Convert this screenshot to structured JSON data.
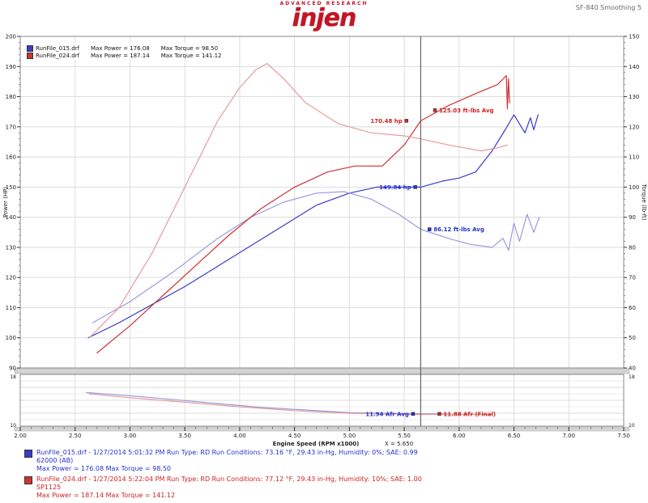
{
  "header": {
    "brand_top": "ADVANCED RESEARCH",
    "brand": "injen",
    "brand_bottom": "TECHNOLOGY",
    "info": "SF-840  Smoothing 5"
  },
  "colors": {
    "run1_power": "#3b3bc8",
    "run1_torque": "#9a9ae0",
    "run2_power": "#cf3333",
    "run2_torque": "#e89a9a",
    "run1_text": "#2233cc",
    "run2_text": "#cc2222",
    "grid": "#dcdcdc",
    "grid_minor": "#ececec",
    "frame": "#888888",
    "cursor": "#666666",
    "splitter": "#d4d4d4"
  },
  "chart_legend": {
    "runs": [
      {
        "file": "RunFile_015.drf",
        "max_power": "Max Power = 176.08",
        "max_torque": "Max Torque = 98.50"
      },
      {
        "file": "RunFile_024.drf",
        "max_power": "Max Power = 187.14",
        "max_torque": "Max Torque = 141.12"
      }
    ]
  },
  "axes": {
    "x_title": "Engine Speed (RPM x1000)",
    "x_readout": "X = 5.650",
    "left_title": "Power (HP)",
    "right_title": "Torque (lb-ft)"
  },
  "chart_data": [
    {
      "type": "line",
      "panel": "main",
      "xlabel": "Engine Speed (RPM x1000)",
      "x_range": [
        2.0,
        7.5
      ],
      "x_ticks": [
        "2.00",
        "2.50",
        "3.00",
        "3.50",
        "4.00",
        "4.50",
        "5.00",
        "5.50",
        "6.00",
        "6.50",
        "7.00",
        "7.50"
      ],
      "left_axis": {
        "label": "Power (HP)",
        "range": [
          90,
          200
        ],
        "ticks": [
          200,
          190,
          180,
          170,
          160,
          150,
          140,
          130,
          120,
          110,
          100,
          90
        ]
      },
      "right_axis": {
        "label": "Torque (lb-ft)",
        "range": [
          40,
          150
        ],
        "ticks": [
          150,
          140,
          130,
          120,
          110,
          100,
          90,
          80,
          70,
          60,
          50,
          40
        ]
      },
      "cursor_x": 5.65,
      "grid": true,
      "series": [
        {
          "name": "run1-power",
          "axis": "power",
          "color_key": "run1_power",
          "points": [
            [
              2.62,
              100
            ],
            [
              2.9,
              105
            ],
            [
              3.2,
              111
            ],
            [
              3.5,
              117
            ],
            [
              3.9,
              126
            ],
            [
              4.3,
              135
            ],
            [
              4.7,
              144
            ],
            [
              5.0,
              148
            ],
            [
              5.25,
              150
            ],
            [
              5.5,
              150
            ],
            [
              5.65,
              150
            ],
            [
              5.85,
              152
            ],
            [
              6.0,
              153
            ],
            [
              6.15,
              155
            ],
            [
              6.3,
              162
            ],
            [
              6.42,
              169
            ],
            [
              6.5,
              174
            ],
            [
              6.55,
              171
            ],
            [
              6.6,
              168
            ],
            [
              6.65,
              173
            ],
            [
              6.68,
              169
            ],
            [
              6.72,
              174
            ]
          ]
        },
        {
          "name": "run1-torque",
          "axis": "torque",
          "color_key": "run1_torque",
          "points": [
            [
              2.66,
              55
            ],
            [
              3.0,
              62
            ],
            [
              3.4,
              72
            ],
            [
              3.8,
              83
            ],
            [
              4.1,
              90
            ],
            [
              4.4,
              95
            ],
            [
              4.7,
              98
            ],
            [
              4.95,
              98.5
            ],
            [
              5.2,
              96
            ],
            [
              5.45,
              91
            ],
            [
              5.65,
              86
            ],
            [
              5.9,
              83
            ],
            [
              6.1,
              81
            ],
            [
              6.3,
              80
            ],
            [
              6.4,
              83
            ],
            [
              6.45,
              79
            ],
            [
              6.5,
              88
            ],
            [
              6.55,
              82
            ],
            [
              6.62,
              91
            ],
            [
              6.68,
              85
            ],
            [
              6.73,
              90
            ]
          ]
        },
        {
          "name": "run2-power",
          "axis": "power",
          "color_key": "run2_power",
          "points": [
            [
              2.7,
              95
            ],
            [
              3.0,
              104
            ],
            [
              3.3,
              114
            ],
            [
              3.6,
              124
            ],
            [
              3.9,
              134
            ],
            [
              4.2,
              143
            ],
            [
              4.5,
              150
            ],
            [
              4.8,
              155
            ],
            [
              5.05,
              157
            ],
            [
              5.3,
              157
            ],
            [
              5.5,
              164
            ],
            [
              5.65,
              172
            ],
            [
              5.9,
              177
            ],
            [
              6.15,
              181
            ],
            [
              6.35,
              184
            ],
            [
              6.43,
              187
            ],
            [
              6.44,
              176
            ],
            [
              6.45,
              186
            ],
            [
              6.46,
              178
            ]
          ]
        },
        {
          "name": "run2-torque",
          "axis": "torque",
          "color_key": "run2_torque",
          "points": [
            [
              2.63,
              50
            ],
            [
              2.9,
              60
            ],
            [
              3.2,
              78
            ],
            [
              3.5,
              100
            ],
            [
              3.8,
              122
            ],
            [
              4.0,
              133
            ],
            [
              4.15,
              139
            ],
            [
              4.25,
              141
            ],
            [
              4.4,
              136
            ],
            [
              4.6,
              128
            ],
            [
              4.9,
              121
            ],
            [
              5.2,
              118
            ],
            [
              5.5,
              117
            ],
            [
              5.65,
              116
            ],
            [
              5.9,
              114
            ],
            [
              6.2,
              112
            ],
            [
              6.35,
              113
            ],
            [
              6.44,
              114
            ]
          ]
        }
      ],
      "annotations": [
        {
          "text": "170.48 hp",
          "rpm": 5.52,
          "value": 172,
          "axis": "power",
          "side": "left",
          "color_key": "run2_text"
        },
        {
          "text": "125.03 ft-lbs Avg",
          "rpm": 5.78,
          "value": 125.5,
          "axis": "torque",
          "side": "right",
          "color_key": "run2_text"
        },
        {
          "text": "149.84 hp",
          "rpm": 5.6,
          "value": 150,
          "axis": "power",
          "side": "left",
          "color_key": "run1_text"
        },
        {
          "text": "86.12 ft-lbs Avg",
          "rpm": 5.73,
          "value": 86,
          "axis": "torque",
          "side": "right",
          "color_key": "run1_text"
        }
      ]
    },
    {
      "type": "line",
      "panel": "afr",
      "y_axis": {
        "label": "Afr",
        "range": [
          10,
          18
        ],
        "ticks": [
          18,
          16,
          14,
          12,
          10
        ]
      },
      "grid": true,
      "series": [
        {
          "name": "run1-afr",
          "axis": "afr",
          "color_key": "run1_torque",
          "points": [
            [
              2.6,
              15.2
            ],
            [
              3.0,
              14.7
            ],
            [
              3.4,
              14.1
            ],
            [
              3.8,
              13.5
            ],
            [
              4.2,
              12.9
            ],
            [
              4.6,
              12.5
            ],
            [
              5.0,
              12.1
            ],
            [
              5.3,
              12.0
            ],
            [
              5.65,
              11.9
            ],
            [
              5.9,
              11.9
            ]
          ]
        },
        {
          "name": "run2-afr",
          "axis": "afr",
          "color_key": "run2_torque",
          "points": [
            [
              2.63,
              15.0
            ],
            [
              3.0,
              14.4
            ],
            [
              3.5,
              13.7
            ],
            [
              4.0,
              13.0
            ],
            [
              4.5,
              12.4
            ],
            [
              5.0,
              12.0
            ],
            [
              5.4,
              11.85
            ],
            [
              5.65,
              11.8
            ],
            [
              6.0,
              11.85
            ],
            [
              6.3,
              11.8
            ]
          ]
        }
      ],
      "annotations": [
        {
          "text": "11.94 Afr Avg",
          "rpm": 5.58,
          "value": 11.9,
          "axis": "afr",
          "side": "left",
          "color_key": "run1_text"
        },
        {
          "text": "11.88 Afr (Final)",
          "rpm": 5.82,
          "value": 11.9,
          "axis": "afr",
          "side": "right",
          "color_key": "run2_text"
        }
      ]
    }
  ],
  "footer": {
    "runs": [
      {
        "line1": "RunFile_015.drf - 1/27/2014 5:01:32 PM  Run Type: RD  Run Conditions: 73.16 °F, 29.43 in-Hg,  Humidity: 0%; SAE: 0.99",
        "line2": "62000 (AB)",
        "line3": "Max Power = 176.08  Max Torque = 98.50"
      },
      {
        "line1": "RunFile_024.drf - 1/27/2014 5:22:04 PM  Run Type: RD  Run Conditions: 77.12 °F, 29.43 in-Hg,  Humidity: 10%; SAE: 1.00",
        "line2": "SP1125",
        "line3": "Max Power = 187.14  Max Torque = 141.12"
      }
    ]
  }
}
